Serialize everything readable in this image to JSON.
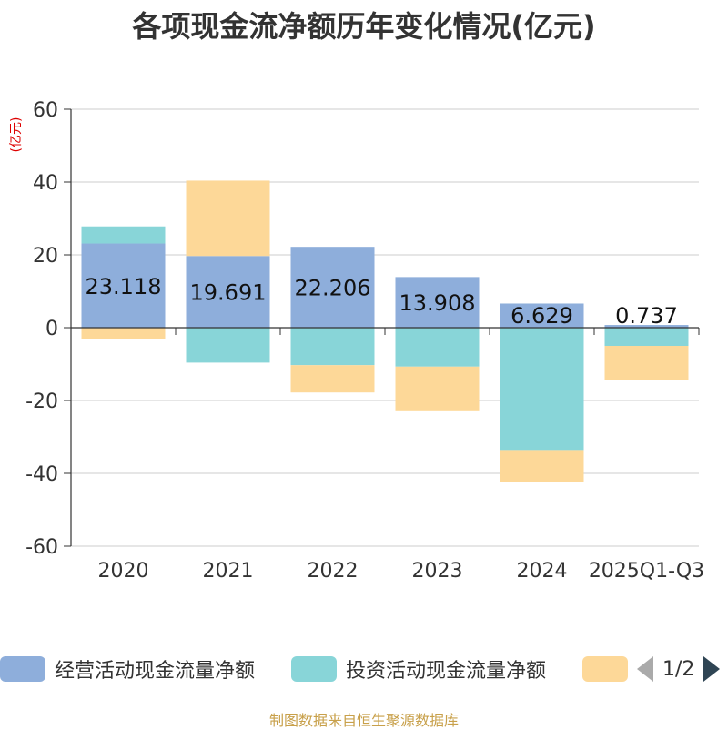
{
  "chart_data": {
    "type": "bar",
    "stacked": true,
    "title": "各项现金流净额历年变化情况(亿元)",
    "ylabel": "(亿元)",
    "xlabel": "",
    "ylim": [
      -60,
      60
    ],
    "yticks": [
      60,
      40,
      20,
      0,
      -20,
      -40,
      -60
    ],
    "categories": [
      "2020",
      "2021",
      "2022",
      "2023",
      "2024",
      "2025Q1-Q3"
    ],
    "series": [
      {
        "name": "经营活动现金流量净额",
        "color": "#8eaedb",
        "values": [
          23.118,
          19.691,
          22.206,
          13.908,
          6.629,
          0.737
        ],
        "labels": [
          "23.118",
          "19.691",
          "22.206",
          "13.908",
          "6.629",
          "0.737"
        ]
      },
      {
        "name": "投资活动现金流量净额",
        "color": "#88d5d8",
        "values": [
          4.7,
          -9.6,
          -10.3,
          -10.7,
          -33.6,
          -5.0
        ]
      },
      {
        "name": "",
        "color": "#fdd898",
        "values": [
          -3.0,
          20.7,
          -7.5,
          -12.0,
          -8.8,
          -9.3
        ]
      }
    ],
    "legend_position": "bottom",
    "source": "制图数据来自恒生聚源数据库"
  },
  "legend": {
    "page": "1/2"
  }
}
